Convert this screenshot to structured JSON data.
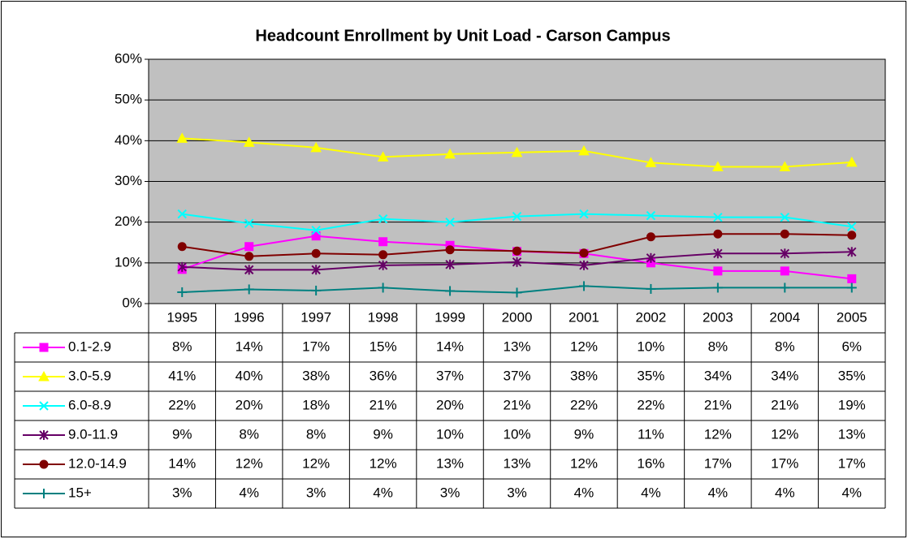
{
  "chart_data": {
    "type": "line",
    "title": "Headcount Enrollment by Unit Load - Carson Campus",
    "categories": [
      "1995",
      "1996",
      "1997",
      "1998",
      "1999",
      "2000",
      "2001",
      "2002",
      "2003",
      "2004",
      "2005"
    ],
    "ylim": [
      0,
      60
    ],
    "yticks": [
      {
        "value": 0,
        "label": "0%"
      },
      {
        "value": 10,
        "label": "10%"
      },
      {
        "value": 20,
        "label": "20%"
      },
      {
        "value": 30,
        "label": "30%"
      },
      {
        "value": 40,
        "label": "40%"
      },
      {
        "value": 50,
        "label": "50%"
      },
      {
        "value": 60,
        "label": "60%"
      }
    ],
    "grid": true,
    "plot_background": "#c0c0c0",
    "series": [
      {
        "name": "0.1-2.9",
        "color": "#ff00ff",
        "marker": "square",
        "values": [
          8.4,
          14,
          16.6,
          15.2,
          14.3,
          12.8,
          12.3,
          10,
          8,
          8,
          6.1
        ],
        "value_labels": [
          "8%",
          "14%",
          "17%",
          "15%",
          "14%",
          "13%",
          "12%",
          "10%",
          "8%",
          "8%",
          "6%"
        ]
      },
      {
        "name": "3.0-5.9",
        "color": "#ffff00",
        "marker": "triangle",
        "values": [
          40.6,
          39.6,
          38.3,
          36,
          36.7,
          37.1,
          37.5,
          34.6,
          33.6,
          33.6,
          34.7
        ],
        "value_labels": [
          "41%",
          "40%",
          "38%",
          "36%",
          "37%",
          "37%",
          "38%",
          "35%",
          "34%",
          "34%",
          "35%"
        ]
      },
      {
        "name": "6.0-8.9",
        "color": "#00ffff",
        "marker": "x",
        "values": [
          22,
          19.7,
          18,
          20.8,
          20,
          21.4,
          22,
          21.6,
          21.2,
          21.2,
          18.9
        ],
        "value_labels": [
          "22%",
          "20%",
          "18%",
          "21%",
          "20%",
          "21%",
          "22%",
          "22%",
          "21%",
          "21%",
          "19%"
        ]
      },
      {
        "name": "9.0-11.9",
        "color": "#660066",
        "marker": "star",
        "values": [
          9,
          8.3,
          8.3,
          9.4,
          9.6,
          10.2,
          9.4,
          11.2,
          12.3,
          12.3,
          12.7
        ],
        "value_labels": [
          "9%",
          "8%",
          "8%",
          "9%",
          "10%",
          "10%",
          "9%",
          "11%",
          "12%",
          "12%",
          "13%"
        ]
      },
      {
        "name": "12.0-14.9",
        "color": "#800000",
        "marker": "circle",
        "values": [
          14,
          11.6,
          12.3,
          12,
          13.2,
          12.9,
          12.4,
          16.4,
          17.1,
          17.1,
          16.8
        ],
        "value_labels": [
          "14%",
          "12%",
          "12%",
          "12%",
          "13%",
          "13%",
          "12%",
          "16%",
          "17%",
          "17%",
          "17%"
        ]
      },
      {
        "name": "15+",
        "color": "#008080",
        "marker": "plus",
        "values": [
          2.8,
          3.5,
          3.2,
          3.9,
          3.1,
          2.7,
          4.3,
          3.6,
          3.9,
          3.9,
          3.9
        ],
        "value_labels": [
          "3%",
          "4%",
          "3%",
          "4%",
          "3%",
          "3%",
          "4%",
          "4%",
          "4%",
          "4%",
          "4%"
        ]
      }
    ]
  }
}
